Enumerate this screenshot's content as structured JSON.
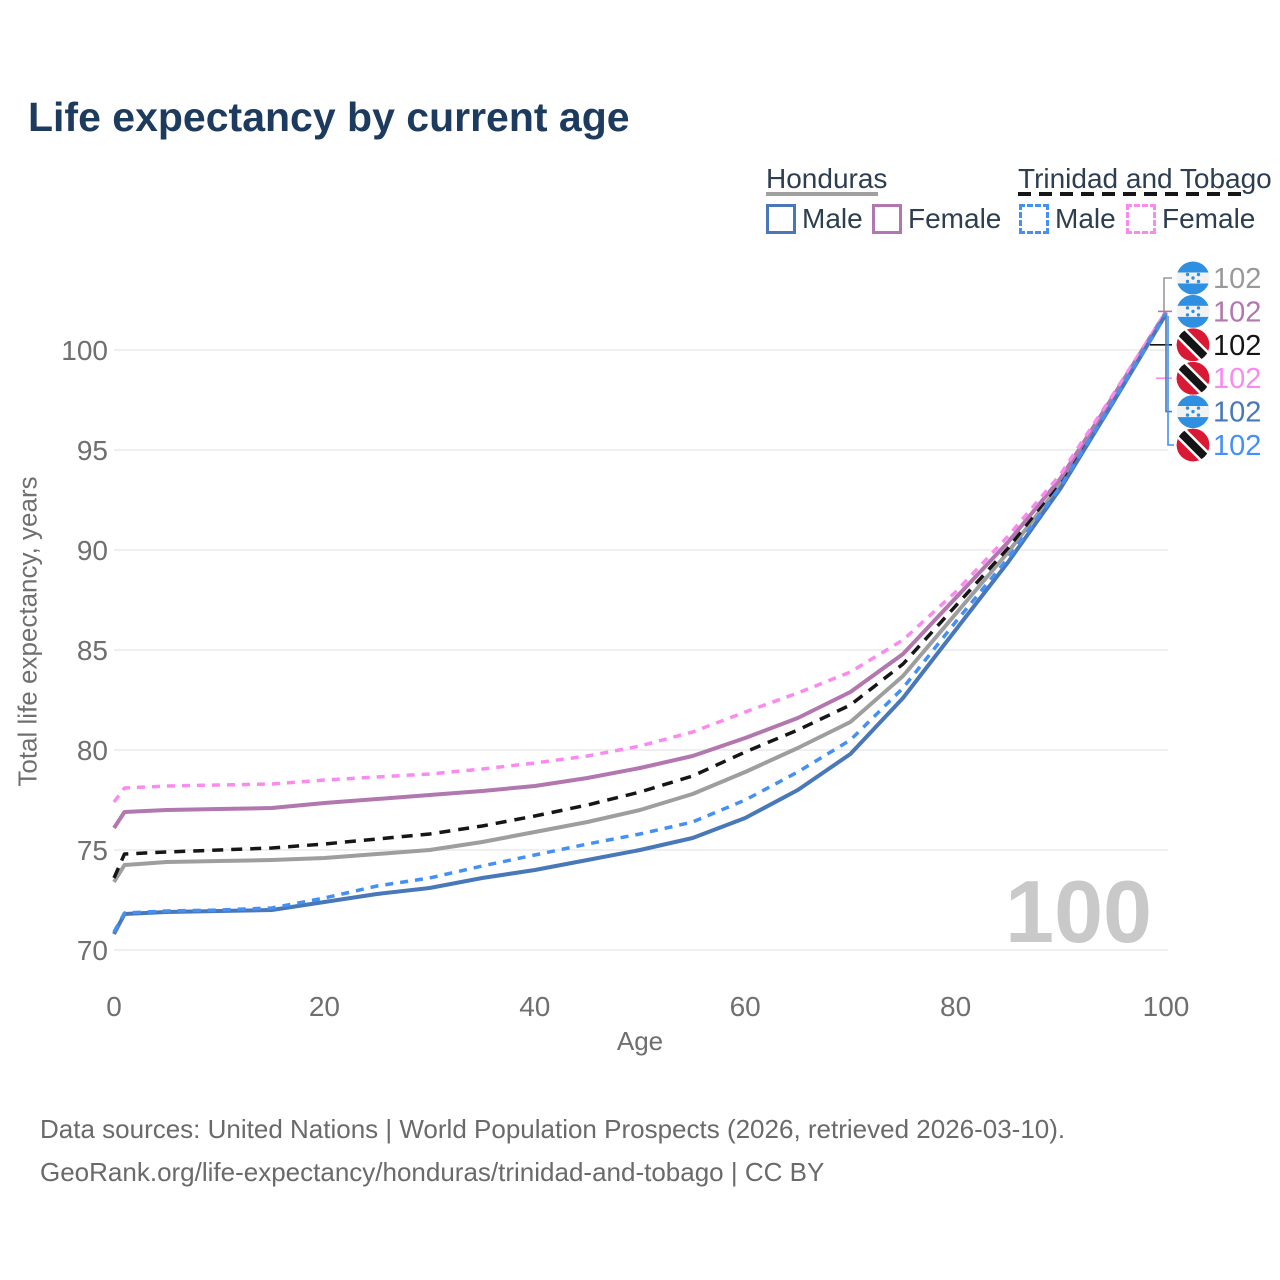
{
  "title": "Life expectancy by current age",
  "colors": {
    "title": "#1d3a5f",
    "legend_text": "#2c3e50",
    "axis_text": "#6f6f6f",
    "grid": "#eaeaea",
    "watermark": "#c9c9c9",
    "footer": "#6a6a6a",
    "honduras_male": "#4878b8",
    "honduras_female": "#b277ae",
    "honduras_both": "#9e9e9e",
    "trinidad_male": "#4490f5",
    "trinidad_female": "#fb8af0",
    "trinidad_both": "#161616",
    "flag_honduras_blue": "#2f8fe0",
    "flag_trinidad_red": "#da1a35"
  },
  "legend": {
    "groups": [
      {
        "name": "Honduras",
        "underline": "solid",
        "items": [
          {
            "label": "Male",
            "color": "#4878b8",
            "dash": "solid"
          },
          {
            "label": "Female",
            "color": "#b277ae",
            "dash": "solid"
          }
        ]
      },
      {
        "name": "Trinidad and Tobago",
        "underline": "dashed",
        "items": [
          {
            "label": "Male",
            "color": "#4490f5",
            "dash": "dashed"
          },
          {
            "label": "Female",
            "color": "#fb8af0",
            "dash": "dashed"
          }
        ]
      }
    ]
  },
  "chart_data": {
    "type": "line",
    "title": "Life expectancy by current age",
    "xlabel": "Age",
    "ylabel": "Total life expectancy, years",
    "xlim": [
      0,
      100
    ],
    "ylim": [
      70,
      102
    ],
    "x_ticks": [
      0,
      20,
      40,
      60,
      80,
      100
    ],
    "y_ticks": [
      70,
      75,
      80,
      85,
      90,
      95,
      100
    ],
    "grid": true,
    "legend_position": "top-right",
    "x": [
      0,
      1,
      5,
      10,
      15,
      20,
      25,
      30,
      35,
      40,
      45,
      50,
      55,
      60,
      65,
      70,
      75,
      80,
      85,
      90,
      95,
      100
    ],
    "series": [
      {
        "name": "Honduras — Both sexes",
        "color": "#9e9e9e",
        "dash": "solid",
        "values": [
          73.4,
          74.25,
          74.4,
          74.45,
          74.5,
          74.6,
          74.8,
          75.0,
          75.4,
          75.9,
          76.4,
          77.0,
          77.8,
          78.9,
          80.1,
          81.4,
          83.7,
          86.8,
          89.9,
          93.3,
          97.5,
          101.8
        ]
      },
      {
        "name": "Trinidad and Tobago — Both sexes",
        "color": "#161616",
        "dash": "dashed",
        "values": [
          73.6,
          74.8,
          74.9,
          75.0,
          75.1,
          75.3,
          75.55,
          75.8,
          76.2,
          76.7,
          77.25,
          77.9,
          78.7,
          79.9,
          81.0,
          82.25,
          84.3,
          87.2,
          90.1,
          93.45,
          97.6,
          101.85
        ]
      },
      {
        "name": "Honduras — Female",
        "color": "#b277ae",
        "dash": "solid",
        "values": [
          76.1,
          76.9,
          77.0,
          77.05,
          77.1,
          77.35,
          77.55,
          77.75,
          77.95,
          78.2,
          78.6,
          79.1,
          79.7,
          80.6,
          81.6,
          82.9,
          84.8,
          87.6,
          90.4,
          93.6,
          97.7,
          101.9
        ]
      },
      {
        "name": "Trinidad and Tobago — Female",
        "color": "#fb8af0",
        "dash": "dashed",
        "values": [
          77.4,
          78.1,
          78.2,
          78.25,
          78.3,
          78.5,
          78.65,
          78.8,
          79.05,
          79.35,
          79.7,
          80.2,
          80.9,
          81.9,
          82.85,
          83.9,
          85.5,
          87.9,
          90.7,
          93.8,
          97.8,
          101.9
        ]
      },
      {
        "name": "Honduras — Male",
        "color": "#4878b8",
        "dash": "solid",
        "values": [
          70.8,
          71.8,
          71.9,
          71.95,
          72.0,
          72.4,
          72.8,
          73.1,
          73.6,
          74.0,
          74.5,
          75.0,
          75.6,
          76.6,
          78.0,
          79.8,
          82.6,
          86.0,
          89.4,
          93.1,
          97.4,
          101.8
        ]
      },
      {
        "name": "Trinidad and Tobago — Male",
        "color": "#4490f5",
        "dash": "dashed",
        "values": [
          70.9,
          71.85,
          71.95,
          72.0,
          72.1,
          72.6,
          73.2,
          73.6,
          74.2,
          74.75,
          75.3,
          75.8,
          76.4,
          77.5,
          78.9,
          80.5,
          83.1,
          86.4,
          89.6,
          93.2,
          97.45,
          101.8
        ]
      }
    ],
    "end_labels": [
      {
        "flag": "honduras",
        "text": "102",
        "color": "#999999",
        "series": "Honduras — Both sexes"
      },
      {
        "flag": "honduras",
        "text": "102",
        "color": "#b277ae",
        "series": "Honduras — Female"
      },
      {
        "flag": "trinidad-and-tobago",
        "text": "102",
        "color": "#151515",
        "series": "Trinidad and Tobago — Both sexes"
      },
      {
        "flag": "trinidad-and-tobago",
        "text": "102",
        "color": "#fb8af0",
        "series": "Trinidad and Tobago — Female"
      },
      {
        "flag": "honduras",
        "text": "102",
        "color": "#4878b8",
        "series": "Honduras — Male"
      },
      {
        "flag": "trinidad-and-tobago",
        "text": "102",
        "color": "#4490f5",
        "series": "Trinidad and Tobago — Male"
      }
    ],
    "watermark": "100"
  },
  "footer": {
    "line1": "Data sources: United Nations | World Population Prospects (2026, retrieved 2026-03-10).",
    "line2": "GeoRank.org/life-expectancy/honduras/trinidad-and-tobago | CC BY"
  }
}
